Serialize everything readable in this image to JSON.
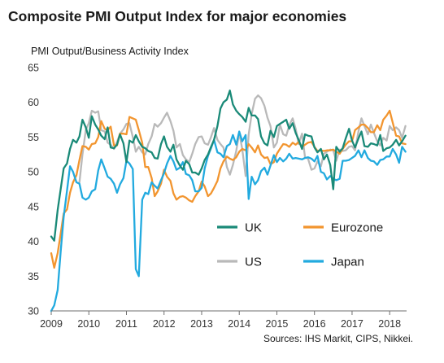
{
  "title": "Composite PMI Output Index for major economies",
  "ylabel": "PMI Output/Business  Activity  Index",
  "source": "Sources: IHS Markit, CIPS, Nikkei.",
  "colors": {
    "UK": "#1a8a78",
    "Eurozone": "#f2952f",
    "US": "#b9b9b9",
    "Japan": "#22aadf"
  },
  "chart_data": {
    "type": "line",
    "title": "Composite PMI Output Index for major economies",
    "ylabel": "PMI Output/Business  Activity  Index",
    "xlabel": "",
    "xlim": [
      2009,
      2018.45
    ],
    "ylim": [
      30,
      65
    ],
    "yticks": [
      30,
      35,
      40,
      45,
      50,
      55,
      60,
      65
    ],
    "xticks": [
      2009,
      2010,
      2011,
      2012,
      2013,
      2014,
      2015,
      2016,
      2017,
      2018
    ],
    "legend": "inside-bottom-right",
    "series": [
      {
        "name": "UK",
        "x": [
          2009.0,
          2009.08,
          2009.17,
          2009.25,
          2009.33,
          2009.42,
          2009.5,
          2009.58,
          2009.67,
          2009.75,
          2009.83,
          2009.92,
          2010.0,
          2010.08,
          2010.17,
          2010.25,
          2010.33,
          2010.42,
          2010.5,
          2010.58,
          2010.67,
          2010.75,
          2010.83,
          2010.92,
          2011.0,
          2011.08,
          2011.17,
          2011.25,
          2011.33,
          2011.42,
          2011.5,
          2011.58,
          2011.67,
          2011.75,
          2011.83,
          2011.92,
          2012.0,
          2012.08,
          2012.17,
          2012.25,
          2012.33,
          2012.42,
          2012.5,
          2012.58,
          2012.67,
          2012.75,
          2012.83,
          2012.92,
          2013.0,
          2013.08,
          2013.17,
          2013.25,
          2013.33,
          2013.42,
          2013.5,
          2013.58,
          2013.67,
          2013.75,
          2013.83,
          2013.92,
          2014.0,
          2014.08,
          2014.17,
          2014.25,
          2014.33,
          2014.42,
          2014.5,
          2014.58,
          2014.67,
          2014.75,
          2014.83,
          2014.92,
          2015.0,
          2015.08,
          2015.17,
          2015.25,
          2015.33,
          2015.42,
          2015.5,
          2015.58,
          2015.67,
          2015.75,
          2015.83,
          2015.92,
          2016.0,
          2016.08,
          2016.17,
          2016.25,
          2016.33,
          2016.42,
          2016.5,
          2016.58,
          2016.67,
          2016.75,
          2016.83,
          2016.92,
          2017.0,
          2017.08,
          2017.17,
          2017.25,
          2017.33,
          2017.42,
          2017.5,
          2017.58,
          2017.67,
          2017.75,
          2017.83,
          2017.92,
          2018.0,
          2018.08,
          2018.17,
          2018.25,
          2018.33,
          2018.42
        ],
        "values": [
          40.7,
          40.1,
          44.5,
          47.5,
          50.5,
          51.2,
          53.3,
          54.6,
          54.2,
          55.1,
          57.5,
          56.4,
          54.9,
          58.0,
          56.8,
          56.1,
          55.2,
          54.7,
          56.4,
          53.5,
          53.4,
          53.9,
          55.4,
          54.1,
          51.4,
          54.5,
          54.2,
          55.3,
          54.4,
          53.6,
          53.4,
          53.0,
          52.8,
          52.0,
          51.9,
          54.0,
          55.1,
          53.6,
          52.9,
          53.9,
          51.8,
          50.9,
          50.3,
          51.6,
          51.1,
          49.9,
          49.9,
          49.6,
          50.5,
          51.7,
          52.5,
          53.6,
          54.6,
          56.6,
          59.1,
          60.0,
          60.4,
          61.7,
          59.7,
          58.8,
          58.3,
          57.9,
          57.2,
          59.2,
          58.1,
          58.1,
          57.6,
          55.1,
          54.1,
          53.8,
          55.9,
          55.0,
          56.6,
          56.9,
          57.2,
          57.5,
          56.2,
          57.0,
          55.6,
          54.6,
          53.3,
          55.4,
          55.2,
          55.1,
          53.5,
          52.8,
          53.3,
          51.8,
          52.5,
          51.0,
          47.5,
          53.6,
          52.9,
          53.4,
          54.8,
          56.2,
          54.5,
          53.5,
          54.8,
          55.8,
          53.7,
          53.6,
          54.1,
          54.0,
          53.8,
          55.3,
          53.0,
          53.4,
          53.5,
          53.9,
          54.6,
          53.8,
          54.4,
          55.2
        ]
      },
      {
        "name": "Eurozone",
        "x": [
          2009.0,
          2009.08,
          2009.17,
          2009.25,
          2009.33,
          2009.42,
          2009.5,
          2009.58,
          2009.67,
          2009.75,
          2009.83,
          2009.92,
          2010.0,
          2010.08,
          2010.17,
          2010.25,
          2010.33,
          2010.42,
          2010.5,
          2010.58,
          2010.67,
          2010.75,
          2010.83,
          2010.92,
          2011.0,
          2011.08,
          2011.17,
          2011.25,
          2011.33,
          2011.42,
          2011.5,
          2011.58,
          2011.67,
          2011.75,
          2011.83,
          2011.92,
          2012.0,
          2012.08,
          2012.17,
          2012.25,
          2012.33,
          2012.42,
          2012.5,
          2012.58,
          2012.67,
          2012.75,
          2012.83,
          2012.92,
          2013.0,
          2013.08,
          2013.17,
          2013.25,
          2013.33,
          2013.42,
          2013.5,
          2013.58,
          2013.67,
          2013.75,
          2013.83,
          2013.92,
          2014.0,
          2014.08,
          2014.17,
          2014.25,
          2014.33,
          2014.42,
          2014.5,
          2014.58,
          2014.67,
          2014.75,
          2014.83,
          2014.92,
          2015.0,
          2015.08,
          2015.17,
          2015.25,
          2015.33,
          2015.42,
          2015.5,
          2015.58,
          2015.67,
          2015.75,
          2015.83,
          2015.92,
          2016.0,
          2016.08,
          2016.17,
          2016.25,
          2016.33,
          2016.42,
          2016.5,
          2016.58,
          2016.67,
          2016.75,
          2016.83,
          2016.92,
          2017.0,
          2017.08,
          2017.17,
          2017.25,
          2017.33,
          2017.42,
          2017.5,
          2017.58,
          2017.67,
          2017.75,
          2017.83,
          2017.92,
          2018.0,
          2018.08,
          2018.17,
          2018.25,
          2018.33,
          2018.42
        ],
        "values": [
          38.3,
          36.2,
          38.3,
          41.1,
          44.0,
          44.6,
          47.0,
          48.5,
          49.5,
          51.7,
          53.7,
          53.6,
          53.2,
          54.0,
          54.1,
          55.0,
          57.3,
          56.2,
          56.0,
          56.5,
          53.8,
          53.8,
          55.5,
          55.5,
          55.4,
          57.9,
          57.7,
          57.5,
          56.0,
          54.2,
          50.7,
          50.7,
          49.1,
          46.5,
          47.2,
          48.3,
          50.3,
          49.3,
          48.7,
          46.9,
          46.0,
          46.4,
          46.5,
          46.3,
          45.9,
          45.7,
          46.5,
          47.2,
          48.6,
          47.9,
          46.5,
          46.9,
          47.7,
          48.7,
          50.5,
          51.5,
          52.2,
          51.9,
          51.7,
          52.1,
          52.9,
          53.3,
          53.1,
          54.0,
          53.5,
          52.8,
          53.8,
          52.5,
          52.0,
          52.1,
          51.1,
          51.4,
          52.6,
          53.3,
          54.0,
          53.9,
          53.6,
          54.2,
          53.9,
          54.3,
          53.6,
          53.9,
          54.2,
          54.3,
          53.6,
          53.0,
          53.1,
          53.0,
          53.1,
          53.1,
          53.2,
          52.9,
          52.6,
          53.3,
          53.9,
          54.4,
          54.4,
          56.0,
          56.4,
          56.8,
          56.8,
          56.3,
          55.7,
          55.7,
          56.7,
          56.0,
          57.5,
          58.1,
          58.8,
          57.1,
          55.2,
          55.1,
          54.1,
          54.0
        ]
      },
      {
        "name": "US",
        "x": [
          2009.75,
          2009.83,
          2009.92,
          2010.0,
          2010.08,
          2010.17,
          2010.25,
          2010.33,
          2010.42,
          2010.5,
          2010.58,
          2010.67,
          2010.75,
          2010.83,
          2010.92,
          2011.0,
          2011.08,
          2011.17,
          2011.25,
          2011.33,
          2011.42,
          2011.5,
          2011.58,
          2011.67,
          2011.75,
          2011.83,
          2011.92,
          2012.0,
          2012.08,
          2012.17,
          2012.25,
          2012.33,
          2012.42,
          2012.5,
          2012.58,
          2012.67,
          2012.75,
          2012.83,
          2012.92,
          2013.0,
          2013.08,
          2013.17,
          2013.25,
          2013.33,
          2013.42,
          2013.5,
          2013.58,
          2013.67,
          2013.75,
          2013.83,
          2013.92,
          2014.0,
          2014.08,
          2014.17,
          2014.25,
          2014.33,
          2014.42,
          2014.5,
          2014.58,
          2014.67,
          2014.75,
          2014.83,
          2014.92,
          2015.0,
          2015.08,
          2015.17,
          2015.25,
          2015.33,
          2015.42,
          2015.5,
          2015.58,
          2015.67,
          2015.75,
          2015.83,
          2015.92,
          2016.0,
          2016.08,
          2016.17,
          2016.25,
          2016.33,
          2016.42,
          2016.5,
          2016.58,
          2016.67,
          2016.75,
          2016.83,
          2016.92,
          2017.0,
          2017.08,
          2017.17,
          2017.25,
          2017.33,
          2017.42,
          2017.5,
          2017.58,
          2017.67,
          2017.75,
          2017.83,
          2017.92,
          2018.0,
          2018.08,
          2018.17,
          2018.25,
          2018.33,
          2018.42
        ],
        "values": [
          48.5,
          52.5,
          56.0,
          57.0,
          58.8,
          58.5,
          58.7,
          56.0,
          55.8,
          54.2,
          53.9,
          53.3,
          54.3,
          55.5,
          56.1,
          56.9,
          57.0,
          55.0,
          52.9,
          53.6,
          52.8,
          52.5,
          54.0,
          55.1,
          56.9,
          56.5,
          57.0,
          57.8,
          58.5,
          57.3,
          55.9,
          53.5,
          54.0,
          52.4,
          51.8,
          51.4,
          52.6,
          54.0,
          55.0,
          55.1,
          54.1,
          53.9,
          55.0,
          56.3,
          54.6,
          54.0,
          53.5,
          50.7,
          49.6,
          51.0,
          53.0,
          55.6,
          53.3,
          49.4,
          55.4,
          58.3,
          60.5,
          61.0,
          60.6,
          59.5,
          57.8,
          56.6,
          53.5,
          54.2,
          56.8,
          55.4,
          55.2,
          56.7,
          57.7,
          56.2,
          54.0,
          55.5,
          52.1,
          51.9,
          50.3,
          50.5,
          51.5,
          50.8,
          52.6,
          52.9,
          53.2,
          53.1,
          51.6,
          53.2,
          53.0,
          53.1,
          53.6,
          53.7,
          53.1,
          55.8,
          57.7,
          56.6,
          55.4,
          56.8,
          55.6,
          54.4,
          53.8,
          54.9,
          54.5,
          56.6,
          56.0,
          56.4,
          56.0,
          54.9,
          56.6
        ]
      },
      {
        "name": "Japan",
        "x": [
          2009.0,
          2009.08,
          2009.17,
          2009.25,
          2009.33,
          2009.42,
          2009.5,
          2009.58,
          2009.67,
          2009.75,
          2009.83,
          2009.92,
          2010.0,
          2010.08,
          2010.17,
          2010.25,
          2010.33,
          2010.42,
          2010.5,
          2010.58,
          2010.67,
          2010.75,
          2010.83,
          2010.92,
          2011.0,
          2011.08,
          2011.17,
          2011.25,
          2011.33,
          2011.42,
          2011.5,
          2011.58,
          2011.67,
          2011.75,
          2011.83,
          2011.92,
          2012.0,
          2012.08,
          2012.17,
          2012.25,
          2012.33,
          2012.42,
          2012.5,
          2012.58,
          2012.67,
          2012.75,
          2012.83,
          2012.92,
          2013.0,
          2013.08,
          2013.17,
          2013.25,
          2013.33,
          2013.42,
          2013.5,
          2013.58,
          2013.67,
          2013.75,
          2013.83,
          2013.92,
          2014.0,
          2014.08,
          2014.17,
          2014.25,
          2014.33,
          2014.42,
          2014.5,
          2014.58,
          2014.67,
          2014.75,
          2014.83,
          2014.92,
          2015.0,
          2015.08,
          2015.17,
          2015.25,
          2015.33,
          2015.42,
          2015.5,
          2015.58,
          2015.67,
          2015.75,
          2015.83,
          2015.92,
          2016.0,
          2016.08,
          2016.17,
          2016.25,
          2016.33,
          2016.42,
          2016.5,
          2016.58,
          2016.67,
          2016.75,
          2016.83,
          2016.92,
          2017.0,
          2017.08,
          2017.17,
          2017.25,
          2017.33,
          2017.42,
          2017.5,
          2017.58,
          2017.67,
          2017.75,
          2017.83,
          2017.92,
          2018.0,
          2018.08,
          2018.17,
          2018.25,
          2018.33,
          2018.42
        ],
        "values": [
          30.0,
          30.8,
          33.0,
          38.5,
          43.5,
          47.3,
          50.8,
          50.0,
          48.5,
          48.3,
          46.3,
          46.0,
          46.3,
          47.2,
          47.5,
          50.2,
          51.8,
          50.5,
          49.3,
          49.0,
          48.3,
          47.0,
          48.2,
          49.1,
          51.6,
          51.2,
          50.4,
          36.0,
          35.0,
          46.0,
          47.0,
          46.8,
          48.5,
          48.0,
          47.6,
          48.8,
          49.8,
          51.2,
          52.3,
          51.5,
          50.3,
          50.6,
          51.4,
          49.7,
          49.5,
          48.8,
          47.2,
          47.2,
          47.7,
          50.5,
          52.3,
          53.4,
          54.6,
          52.8,
          52.6,
          52.1,
          53.7,
          54.0,
          55.3,
          53.9,
          55.8,
          54.4,
          55.3,
          46.1,
          49.3,
          48.2,
          48.8,
          50.1,
          50.6,
          49.6,
          50.9,
          52.4,
          51.4,
          52.0,
          51.5,
          51.9,
          52.6,
          51.9,
          52.0,
          51.9,
          51.8,
          52.0,
          52.1,
          51.9,
          51.5,
          52.3,
          50.0,
          49.8,
          48.9,
          49.4,
          49.0,
          48.8,
          49.0,
          51.6,
          51.6,
          51.7,
          52.0,
          52.3,
          53.1,
          52.1,
          53.1,
          52.0,
          51.6,
          51.5,
          51.0,
          51.7,
          51.8,
          52.2,
          52.2,
          53.3,
          52.5,
          51.3,
          53.6,
          52.9
        ]
      }
    ]
  }
}
